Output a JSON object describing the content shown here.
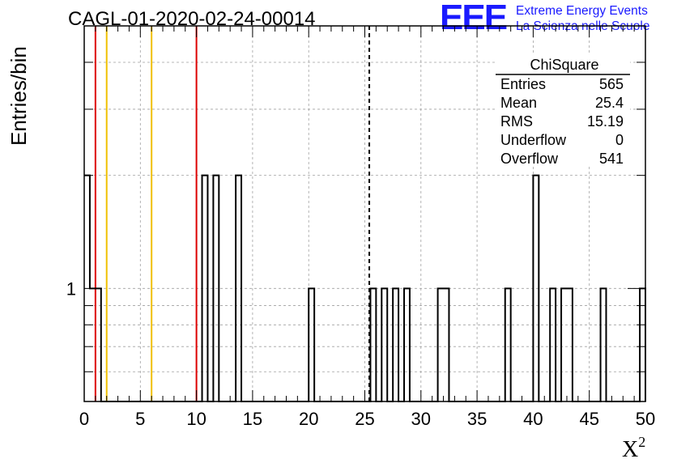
{
  "logo": {
    "letters": "EEE",
    "line1": "Extreme Energy Events",
    "line2": "La Scienza nelle Scuole",
    "color": "#1a1aff"
  },
  "chart_data": {
    "type": "bar",
    "title": "CAGL-01-2020-02-24-00014",
    "xlabel": "X",
    "xlabel_superscript": "2",
    "ylabel": "Entries/bin",
    "xlim": [
      0,
      50
    ],
    "ylim": [
      0.5,
      5
    ],
    "yscale": "log",
    "bin_width": 0.5,
    "x_ticks": [
      "0",
      "5",
      "10",
      "15",
      "20",
      "25",
      "30",
      "35",
      "40",
      "45",
      "50"
    ],
    "y_ticks": [
      "1"
    ],
    "grid": true,
    "bins": [
      {
        "x": 0,
        "count": 2
      },
      {
        "x": 0.5,
        "count": 1
      },
      {
        "x": 1,
        "count": 1
      },
      {
        "x": 10.5,
        "count": 2
      },
      {
        "x": 11.5,
        "count": 2
      },
      {
        "x": 13.5,
        "count": 2
      },
      {
        "x": 20,
        "count": 1
      },
      {
        "x": 25.5,
        "count": 1
      },
      {
        "x": 26.5,
        "count": 1
      },
      {
        "x": 27.5,
        "count": 1
      },
      {
        "x": 28.5,
        "count": 1
      },
      {
        "x": 31.5,
        "count": 1
      },
      {
        "x": 32,
        "count": 1
      },
      {
        "x": 37.5,
        "count": 1
      },
      {
        "x": 40,
        "count": 2
      },
      {
        "x": 41.5,
        "count": 1
      },
      {
        "x": 42.5,
        "count": 1
      },
      {
        "x": 43,
        "count": 1
      },
      {
        "x": 46,
        "count": 1
      },
      {
        "x": 49.5,
        "count": 1
      }
    ],
    "vertical_lines": [
      {
        "x": 1,
        "color": "#dd0000",
        "style": "solid"
      },
      {
        "x": 2,
        "color": "#f0c000",
        "style": "solid"
      },
      {
        "x": 6,
        "color": "#f0c000",
        "style": "solid"
      },
      {
        "x": 10,
        "color": "#dd0000",
        "style": "solid"
      },
      {
        "x": 25.4,
        "color": "#000000",
        "style": "dashed"
      }
    ],
    "stats_box": {
      "title": "ChiSquare",
      "rows": [
        {
          "label": "Entries",
          "value": "565"
        },
        {
          "label": "Mean",
          "value": "25.4"
        },
        {
          "label": "RMS",
          "value": "15.19"
        },
        {
          "label": "Underflow",
          "value": "0"
        },
        {
          "label": "Overflow",
          "value": "541"
        }
      ]
    }
  }
}
